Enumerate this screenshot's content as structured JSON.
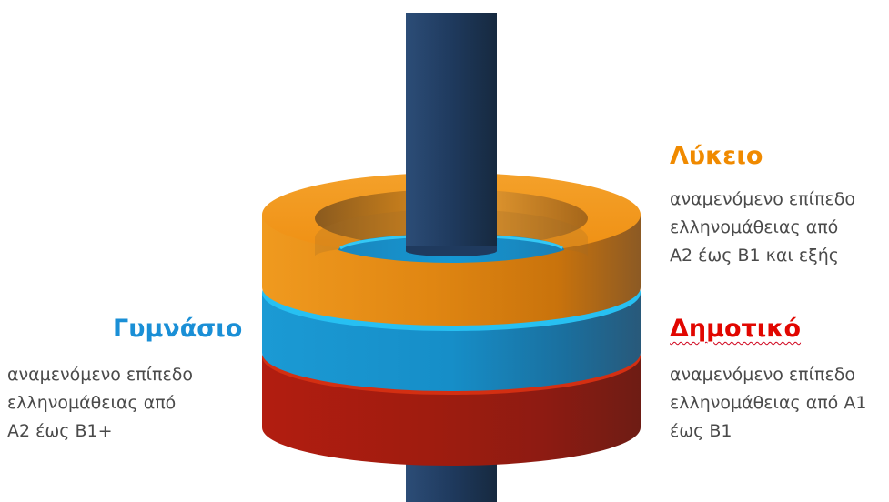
{
  "colors": {
    "pillar": "#253f63",
    "lykeio": "#ef8f12",
    "gymnasio": "#1596cf",
    "dimotiko": "#c0290f"
  },
  "levels": {
    "lykeio": {
      "title": "Λύκειο",
      "color": "#f08a00",
      "description": [
        "αναμενόμενο επίπεδο",
        "ελληνομάθειας από",
        "Α2 έως Β1 και εξής"
      ]
    },
    "gymnasio": {
      "title": "Γυμνάσιο",
      "color": "#1a8fd6",
      "description": [
        "αναμενόμενο επίπεδο",
        "ελληνομάθειας από",
        "Α2 έως Β1+"
      ]
    },
    "dimotiko": {
      "title": "Δημοτικό",
      "color": "#e10600",
      "description": [
        "αναμενόμενο επίπεδο",
        "ελληνομάθειας από Α1",
        "έως Β1"
      ]
    }
  }
}
